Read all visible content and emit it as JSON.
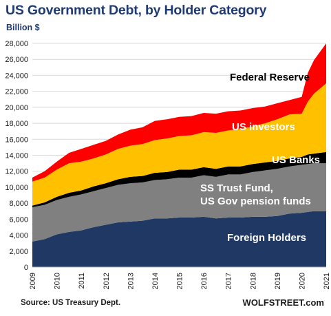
{
  "header": {
    "title": "US Government Debt, by Holder Category",
    "subtitle": "Billion $"
  },
  "footer": {
    "source": "Source: US Treasury Dept.",
    "brand": "WOLFSTREET.com"
  },
  "chart_data": {
    "type": "area",
    "stacked": true,
    "title": "US Government Debt, by Holder Category",
    "ylabel": "Billion $",
    "xlabel": "",
    "ylim": [
      0,
      28000
    ],
    "xlim": [
      2009,
      2021
    ],
    "grid": true,
    "legend": "inline labels on areas",
    "x_ticks": [
      "2009",
      "2010",
      "2011",
      "2012",
      "2013",
      "2014",
      "2015",
      "2016",
      "2017",
      "2018",
      "2019",
      "2020",
      "2021"
    ],
    "y_ticks": [
      "0",
      "2,000",
      "4,000",
      "6,000",
      "8,000",
      "10,000",
      "12,000",
      "14,000",
      "16,000",
      "18,000",
      "20,000",
      "22,000",
      "24,000",
      "26,000",
      "28,000"
    ],
    "x": [
      2009,
      2009.5,
      2010,
      2010.5,
      2011,
      2011.5,
      2012,
      2012.5,
      2013,
      2013.5,
      2014,
      2014.5,
      2015,
      2015.5,
      2016,
      2016.5,
      2017,
      2017.5,
      2018,
      2018.5,
      2019,
      2019.5,
      2020,
      2020.25,
      2020.5,
      2021
    ],
    "series": [
      {
        "name": "Foreign Holders",
        "color": "#203864",
        "label_color": "#ffffff",
        "values": [
          3200,
          3500,
          4100,
          4400,
          4600,
          5000,
          5300,
          5600,
          5700,
          5800,
          6100,
          6100,
          6200,
          6200,
          6300,
          6100,
          6200,
          6200,
          6300,
          6300,
          6400,
          6700,
          6800,
          6900,
          7000,
          7000
        ]
      },
      {
        "name": "SS Trust Fund, US Gov pension funds",
        "color": "#808080",
        "label_color": "#ffffff",
        "values": [
          4300,
          4300,
          4300,
          4400,
          4500,
          4500,
          4600,
          4700,
          4800,
          4800,
          4800,
          4900,
          5000,
          5000,
          5200,
          5200,
          5400,
          5400,
          5600,
          5800,
          5900,
          5900,
          6000,
          6000,
          6000,
          6000
        ]
      },
      {
        "name": "US Banks",
        "color": "#000000",
        "label_color": "#ffffff",
        "values": [
          200,
          300,
          400,
          500,
          500,
          600,
          600,
          700,
          800,
          800,
          900,
          900,
          1000,
          1000,
          1000,
          1000,
          1000,
          1000,
          1000,
          1000,
          1000,
          1000,
          1000,
          1200,
          1200,
          1400
        ]
      },
      {
        "name": "US investors",
        "color": "#ffc000",
        "label_color": "#ffffff",
        "values": [
          3000,
          3100,
          3400,
          3700,
          3600,
          3500,
          3600,
          3800,
          3900,
          4000,
          4100,
          4200,
          4200,
          4300,
          4400,
          4500,
          4500,
          4700,
          4700,
          4900,
          5200,
          5500,
          5400,
          6600,
          7500,
          8600
        ]
      },
      {
        "name": "Federal Reserve",
        "color": "#ff0000",
        "label_color": "#000000",
        "values": [
          500,
          800,
          1000,
          1300,
          1600,
          1700,
          1700,
          1800,
          2000,
          2100,
          2400,
          2400,
          2400,
          2400,
          2400,
          2400,
          2400,
          2300,
          2300,
          2100,
          2000,
          1800,
          2100,
          3600,
          4200,
          5000
        ]
      }
    ],
    "annotations": []
  }
}
